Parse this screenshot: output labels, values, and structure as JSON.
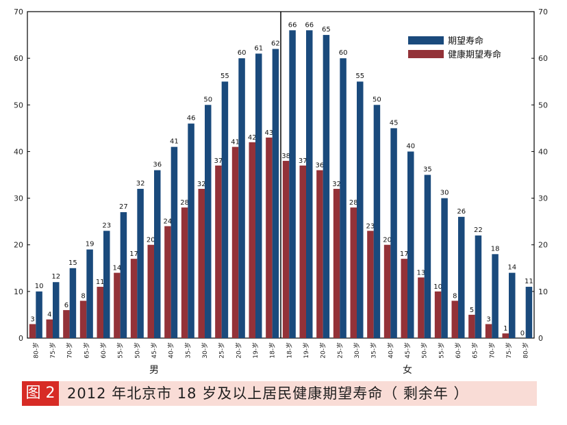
{
  "chart_data": {
    "type": "bar",
    "title": "",
    "ylim": [
      0,
      70
    ],
    "yticks": [
      0,
      10,
      20,
      30,
      40,
      50,
      60,
      70
    ],
    "grid": false,
    "legend_position": "top-right",
    "groups": [
      {
        "label": "男",
        "categories": [
          "80-岁",
          "75-岁",
          "70-岁",
          "65-岁",
          "60-岁",
          "55-岁",
          "50-岁",
          "45-岁",
          "40-岁",
          "35-岁",
          "30-岁",
          "25-岁",
          "20-岁",
          "19-岁",
          "18-岁"
        ],
        "series": [
          {
            "name": "期望寿命",
            "values": [
              10,
              12,
              15,
              19,
              23,
              27,
              32,
              36,
              41,
              46,
              50,
              55,
              60,
              61,
              62
            ]
          },
          {
            "name": "健康期望寿命",
            "values": [
              3,
              4,
              6,
              8,
              11,
              14,
              17,
              20,
              24,
              28,
              32,
              37,
              41,
              42,
              43
            ]
          }
        ]
      },
      {
        "label": "女",
        "categories": [
          "18-岁",
          "19-岁",
          "20-岁",
          "25-岁",
          "30-岁",
          "35-岁",
          "40-岁",
          "45-岁",
          "50-岁",
          "55-岁",
          "60-岁",
          "65-岁",
          "70-岁",
          "75-岁",
          "80-岁"
        ],
        "series": [
          {
            "name": "期望寿命",
            "values": [
              66,
              66,
              65,
              60,
              55,
              50,
              45,
              40,
              35,
              30,
              26,
              22,
              18,
              14,
              11
            ]
          },
          {
            "name": "健康期望寿命",
            "values": [
              38,
              37,
              36,
              32,
              28,
              23,
              20,
              17,
              13,
              10,
              8,
              5,
              3,
              1,
              0
            ]
          }
        ]
      }
    ],
    "colors": {
      "期望寿命": "#1a4a7c",
      "健康期望寿命": "#933238"
    }
  },
  "caption": {
    "tag": "图 2",
    "text": "2012 年北京市 18 岁及以上居民健康期望寿命（ 剩余年 ）"
  },
  "colors": {
    "caption_bg": "#f9dcd6",
    "caption_tag": "#d72b25"
  }
}
